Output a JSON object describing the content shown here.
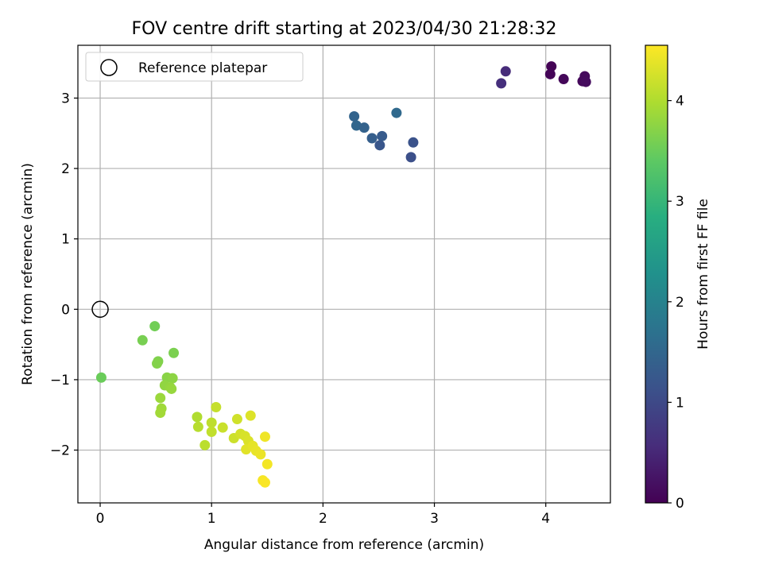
{
  "chart_data": {
    "type": "scatter",
    "title": "FOV centre drift starting at 2023/04/30 21:28:32",
    "xlabel": "Angular distance from reference (arcmin)",
    "ylabel": "Rotation from reference (arcmin)",
    "xlim": [
      -0.2,
      4.58
    ],
    "ylim": [
      -2.75,
      3.75
    ],
    "xticks": [
      0,
      1,
      2,
      3,
      4
    ],
    "yticks": [
      -2,
      -1,
      0,
      1,
      2,
      3
    ],
    "grid": true,
    "legend": {
      "position": "top-left",
      "entries": [
        "Reference platepar"
      ]
    },
    "reference_point": {
      "x": 0,
      "y": 0,
      "label": "Reference platepar"
    },
    "colorbar": {
      "label": "Hours from first FF file",
      "colormap": "viridis",
      "range": [
        0,
        4.55
      ],
      "ticks": [
        0,
        1,
        2,
        3,
        4
      ]
    },
    "points": [
      {
        "x": 4.05,
        "y": 3.45,
        "h": 0.02
      },
      {
        "x": 4.04,
        "y": 3.34,
        "h": 0.05
      },
      {
        "x": 4.16,
        "y": 3.27,
        "h": 0.08
      },
      {
        "x": 4.33,
        "y": 3.24,
        "h": 0.1
      },
      {
        "x": 4.35,
        "y": 3.31,
        "h": 0.12
      },
      {
        "x": 4.36,
        "y": 3.23,
        "h": 0.14
      },
      {
        "x": 3.64,
        "y": 3.38,
        "h": 0.55
      },
      {
        "x": 3.6,
        "y": 3.21,
        "h": 0.6
      },
      {
        "x": 2.28,
        "y": 2.74,
        "h": 1.45
      },
      {
        "x": 2.3,
        "y": 2.61,
        "h": 1.5
      },
      {
        "x": 2.37,
        "y": 2.58,
        "h": 1.42
      },
      {
        "x": 2.66,
        "y": 2.79,
        "h": 1.55
      },
      {
        "x": 2.44,
        "y": 2.43,
        "h": 1.35
      },
      {
        "x": 2.53,
        "y": 2.46,
        "h": 1.3
      },
      {
        "x": 2.51,
        "y": 2.33,
        "h": 1.2
      },
      {
        "x": 2.81,
        "y": 2.37,
        "h": 1.15
      },
      {
        "x": 2.79,
        "y": 2.16,
        "h": 1.1
      },
      {
        "x": 0.01,
        "y": -0.97,
        "h": 3.5
      },
      {
        "x": 0.49,
        "y": -0.24,
        "h": 3.55
      },
      {
        "x": 0.38,
        "y": -0.44,
        "h": 3.6
      },
      {
        "x": 0.66,
        "y": -0.62,
        "h": 3.62
      },
      {
        "x": 0.52,
        "y": -0.74,
        "h": 3.65
      },
      {
        "x": 0.51,
        "y": -0.77,
        "h": 3.68
      },
      {
        "x": 0.6,
        "y": -0.97,
        "h": 3.72
      },
      {
        "x": 0.65,
        "y": -0.98,
        "h": 3.75
      },
      {
        "x": 0.58,
        "y": -1.08,
        "h": 3.78
      },
      {
        "x": 0.63,
        "y": -1.11,
        "h": 3.8
      },
      {
        "x": 0.64,
        "y": -1.13,
        "h": 3.82
      },
      {
        "x": 0.54,
        "y": -1.26,
        "h": 3.85
      },
      {
        "x": 0.55,
        "y": -1.41,
        "h": 3.88
      },
      {
        "x": 0.54,
        "y": -1.47,
        "h": 3.9
      },
      {
        "x": 0.87,
        "y": -1.53,
        "h": 4.0
      },
      {
        "x": 0.88,
        "y": -1.67,
        "h": 4.05
      },
      {
        "x": 0.94,
        "y": -1.93,
        "h": 4.08
      },
      {
        "x": 1.0,
        "y": -1.61,
        "h": 4.1
      },
      {
        "x": 1.0,
        "y": -1.74,
        "h": 4.12
      },
      {
        "x": 1.04,
        "y": -1.39,
        "h": 4.15
      },
      {
        "x": 1.1,
        "y": -1.68,
        "h": 4.18
      },
      {
        "x": 1.2,
        "y": -1.83,
        "h": 4.2
      },
      {
        "x": 1.23,
        "y": -1.56,
        "h": 4.22
      },
      {
        "x": 1.26,
        "y": -1.77,
        "h": 4.25
      },
      {
        "x": 1.3,
        "y": -1.8,
        "h": 4.28
      },
      {
        "x": 1.33,
        "y": -1.87,
        "h": 4.3
      },
      {
        "x": 1.35,
        "y": -1.51,
        "h": 4.32
      },
      {
        "x": 1.31,
        "y": -1.99,
        "h": 4.35
      },
      {
        "x": 1.37,
        "y": -1.94,
        "h": 4.38
      },
      {
        "x": 1.4,
        "y": -2.01,
        "h": 4.4
      },
      {
        "x": 1.44,
        "y": -2.06,
        "h": 4.42
      },
      {
        "x": 1.48,
        "y": -1.81,
        "h": 4.45
      },
      {
        "x": 1.5,
        "y": -2.2,
        "h": 4.48
      },
      {
        "x": 1.46,
        "y": -2.43,
        "h": 4.5
      },
      {
        "x": 1.48,
        "y": -2.46,
        "h": 4.52
      }
    ]
  }
}
